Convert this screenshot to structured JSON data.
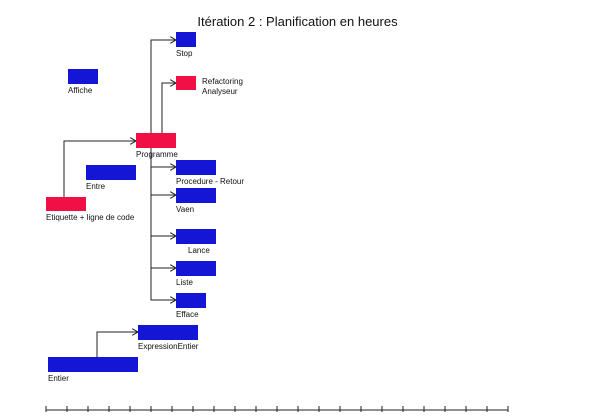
{
  "title": "Itération 2 : Planification en heures",
  "colors": {
    "dev": "#1515d6",
    "refactor": "#f01045",
    "line": "#222222"
  },
  "tasks": [
    {
      "id": "stop",
      "label": "Stop",
      "kind": "dev"
    },
    {
      "id": "refactoring",
      "label": "Refactoring\nAnalyseur",
      "kind": "refactor"
    },
    {
      "id": "affiche",
      "label": "Affiche",
      "kind": "dev"
    },
    {
      "id": "programme",
      "label": "Programme",
      "kind": "refactor"
    },
    {
      "id": "entre",
      "label": "Entre",
      "kind": "dev"
    },
    {
      "id": "procedure-retour",
      "label": "Procedure - Retour",
      "kind": "dev"
    },
    {
      "id": "vaen",
      "label": "Vaen",
      "kind": "dev"
    },
    {
      "id": "etiquette",
      "label": "Etiquette + ligne de code",
      "kind": "refactor"
    },
    {
      "id": "lance",
      "label": "Lance",
      "kind": "dev"
    },
    {
      "id": "liste",
      "label": "Liste",
      "kind": "dev"
    },
    {
      "id": "efface",
      "label": "Efface",
      "kind": "dev"
    },
    {
      "id": "expression-entier",
      "label": "ExpressionEntier",
      "kind": "dev"
    },
    {
      "id": "entier",
      "label": "Entier",
      "kind": "dev"
    }
  ]
}
